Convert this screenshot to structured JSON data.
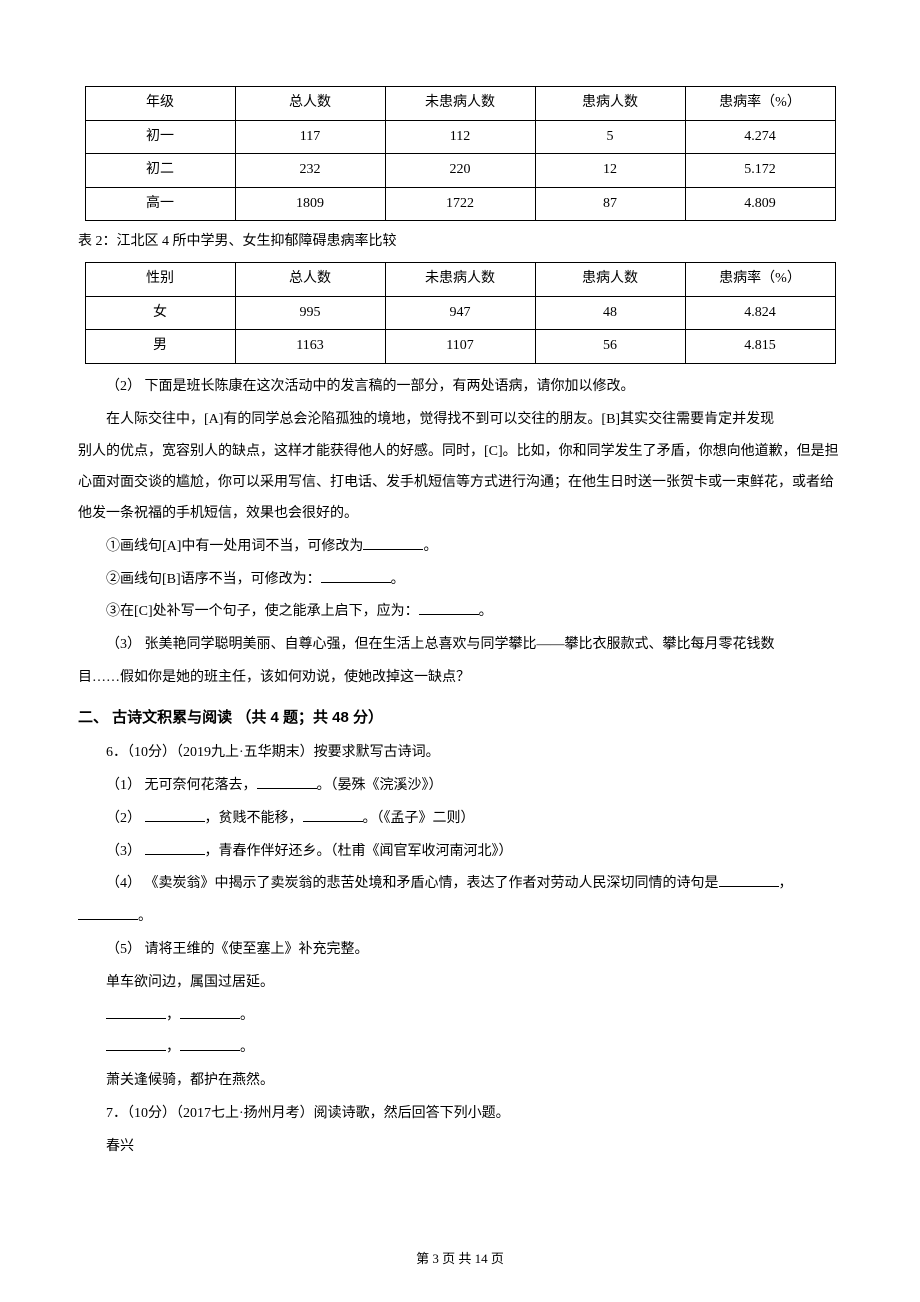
{
  "table1": {
    "type": "table",
    "columns": [
      "年级",
      "总人数",
      "未患病人数",
      "患病人数",
      "患病率（%）"
    ],
    "rows": [
      [
        "初一",
        "117",
        "112",
        "5",
        "4.274"
      ],
      [
        "初二",
        "232",
        "220",
        "12",
        "5.172"
      ],
      [
        "高一",
        "1809",
        "1722",
        "87",
        "4.809"
      ]
    ],
    "border_color": "#000000",
    "background_color": "#ffffff",
    "fontsize": 14
  },
  "caption2": "表 2：江北区 4 所中学男、女生抑郁障碍患病率比较",
  "table2": {
    "type": "table",
    "columns": [
      "性别",
      "总人数",
      "未患病人数",
      "患病人数",
      "患病率（%）"
    ],
    "rows": [
      [
        "女",
        "995",
        "947",
        "48",
        "4.824"
      ],
      [
        "男",
        "1163",
        "1107",
        "56",
        "4.815"
      ]
    ],
    "border_color": "#000000",
    "background_color": "#ffffff",
    "fontsize": 14
  },
  "q2": {
    "prompt": "（2） 下面是班长陈康在这次活动中的发言稿的一部分，有两处语病，请你加以修改。",
    "body_line1": "在人际交往中，[A]有的同学总会沦陷孤独的境地，觉得找不到可以交往的朋友。[B]其实交往需要肯定并发现",
    "body_line2_plain": "别人的优点，宽容别人的缺点，这样才能获得他人的好感。同时，[C]。比如，你和同学发生了矛盾，你想向他道歉，但是担心面对面交谈的尴尬，你可以采用写信、打电话、发手机短信等方式进行沟通；在他生日时送一张贺卡或一束鲜花，或者给他发一条祝福的手机短信，效果也会很好的。",
    "sub1": "①画线句[A]中有一处用词不当，可修改为",
    "sub1_end": "。",
    "sub2": "②画线句[B]语序不当，可修改为：",
    "sub2_end": "。",
    "sub3": "③在[C]处补写一个句子，使之能承上启下，应为：",
    "sub3_end": "。"
  },
  "q3": {
    "line1": "（3） 张美艳同学聪明美丽、自尊心强，但在生活上总喜欢与同学攀比——攀比衣服款式、攀比每月零花钱数",
    "line2": "目……假如你是她的班主任，该如何劝说，使她改掉这一缺点？"
  },
  "section_title": "二、 古诗文积累与阅读 （共 4 题；共 48 分）",
  "q6": {
    "head": "6．（10分）（2019九上·五华期末）按要求默写古诗词。",
    "s1a": "（1） 无可奈何花落去，",
    "s1b": "。（晏殊《浣溪沙》）",
    "s2a": "（2） ",
    "s2b": "，贫贱不能移，",
    "s2c": "。（《孟子》二则）",
    "s3a": "（3） ",
    "s3b": "，青春作伴好还乡。（杜甫《闻官军收河南河北》）",
    "s4a": "（4） 《卖炭翁》中揭示了卖炭翁的悲苦处境和矛盾心情，表达了作者对劳动人民深切同情的诗句是",
    "s4b": "，",
    "s4c": "。",
    "s5": "（5） 请将王维的《使至塞上》补充完整。",
    "poem1": "单车欲问边，属国过居延。",
    "poem_blank_sep": "，",
    "poem_blank_end": "。",
    "poem4": "萧关逢候骑，都护在燕然。"
  },
  "q7": {
    "head": "7．（10分）（2017七上·扬州月考）阅读诗歌，然后回答下列小题。",
    "title": "春兴"
  },
  "footer": "第 3 页 共 14 页",
  "colors": {
    "text": "#000000",
    "background": "#ffffff",
    "border": "#000000"
  },
  "typography": {
    "body_font": "SimSun",
    "heading_font": "SimHei",
    "body_fontsize": 14,
    "heading_fontsize": 15
  }
}
